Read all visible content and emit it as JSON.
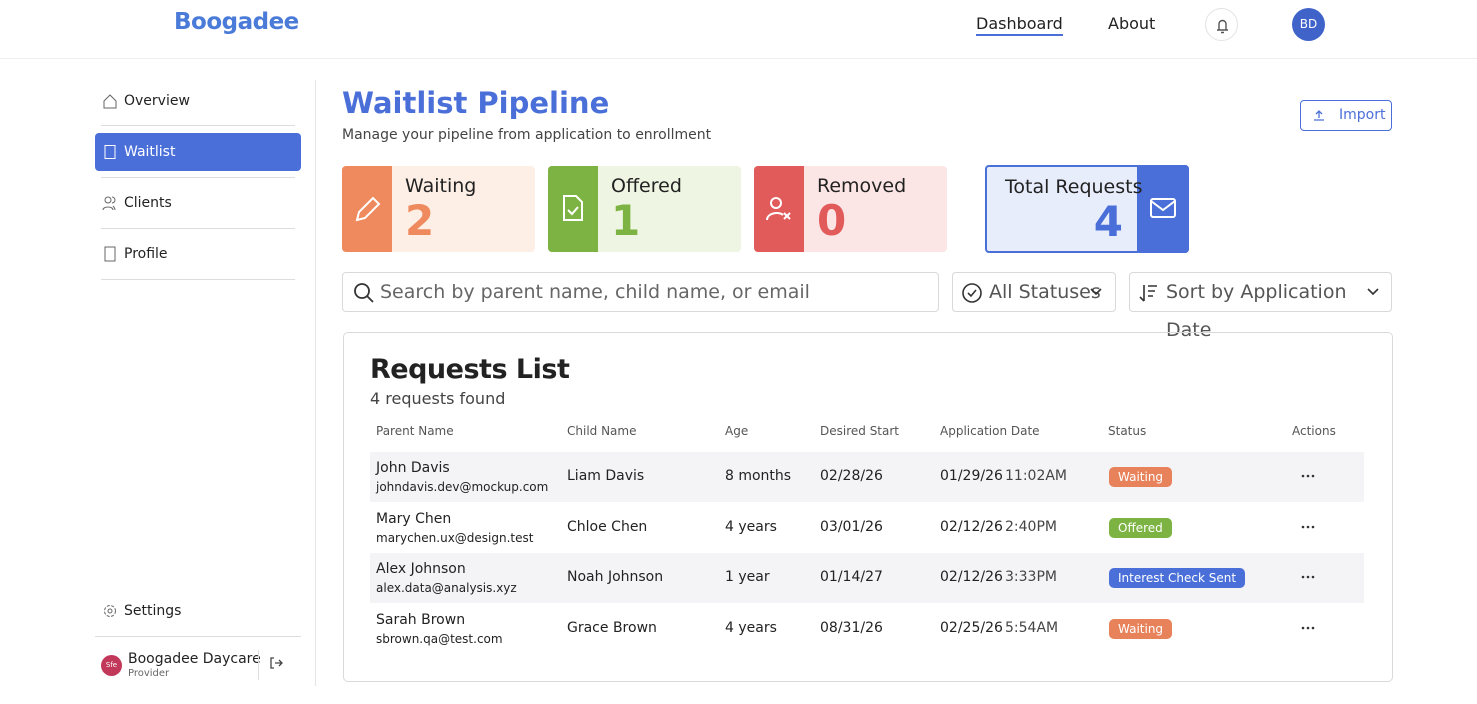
{
  "header": {
    "logo": "Boogadee",
    "nav": [
      "Dashboard",
      "About"
    ],
    "avatar": "BD"
  },
  "sidebar": {
    "items": [
      "Overview",
      "Waitlist",
      "Clients",
      "Profile"
    ],
    "settings": "Settings",
    "org": {
      "badge": "Sfe",
      "name": "Boogadee Daycare",
      "role": "Provider"
    }
  },
  "page": {
    "title": "Waitlist Pipeline",
    "subtitle": "Manage your pipeline from application to enrollment",
    "import": "Import"
  },
  "stats": [
    {
      "label": "Waiting",
      "value": 2
    },
    {
      "label": "Offered",
      "value": 1
    },
    {
      "label": "Removed",
      "value": 0
    },
    {
      "label": "Total Requests",
      "value": 4
    }
  ],
  "filters": {
    "search": "Search by parent name, child name, or email",
    "status": "All Statuses",
    "sort": "Sort by Application Date"
  },
  "table": {
    "title": "Requests List",
    "count": "4 requests found",
    "columns": [
      "Parent Name",
      "Child Name",
      "Age",
      "Desired Start",
      "Application Date",
      "Status",
      "Actions"
    ],
    "rows": [
      {
        "parent": "John Davis",
        "email": "johndavis.dev@mockup.com",
        "child": "Liam Davis",
        "age": "8 months",
        "start": "02/28/26",
        "date": "01/29/26",
        "time": "11:02AM",
        "status": "Waiting"
      },
      {
        "parent": "Mary Chen",
        "email": "marychen.ux@design.test",
        "child": "Chloe Chen",
        "age": "4 years",
        "start": "03/01/26",
        "date": "02/12/26",
        "time": "2:40PM",
        "status": "Offered"
      },
      {
        "parent": "Alex Johnson",
        "email": "alex.data@analysis.xyz",
        "child": "Noah Johnson",
        "age": "1 year",
        "start": "01/14/27",
        "date": "02/12/26",
        "time": "3:33PM",
        "status": "Interest Check Sent"
      },
      {
        "parent": "Sarah Brown",
        "email": "sbrown.qa@test.com",
        "child": "Grace Brown",
        "age": "4 years",
        "start": "08/31/26",
        "date": "02/25/26",
        "time": "5:54AM",
        "status": "Waiting"
      }
    ]
  }
}
